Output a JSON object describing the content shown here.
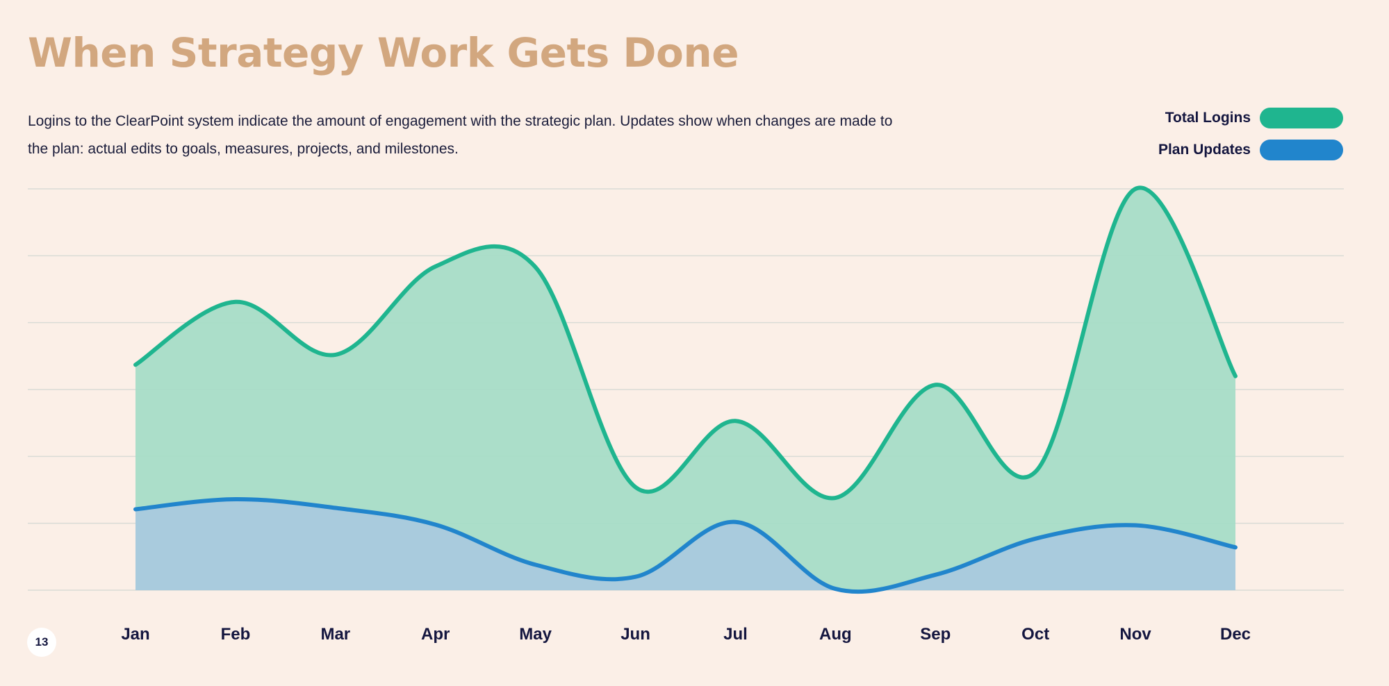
{
  "slide": {
    "title": "When Strategy Work Gets Done",
    "description": "Logins to the ClearPoint system indicate the amount of engagement with the strategic plan. Updates show when changes are made to the plan: actual edits to goals, measures, projects, and milestones.",
    "page_number": "13"
  },
  "legend": [
    {
      "label": "Total Logins",
      "color": "#1fb58f"
    },
    {
      "label": "Plan Updates",
      "color": "#2185cc"
    }
  ],
  "colors": {
    "background": "#fbefe7",
    "title": "#d2a77f",
    "gridline": "#d9dbd6",
    "logins_line": "#1fb58f",
    "logins_fill": "#a6dcc7",
    "updates_line": "#2185cc",
    "updates_fill": "#a9c9de"
  },
  "chart_data": {
    "type": "area",
    "categories": [
      "Jan",
      "Feb",
      "Mar",
      "Apr",
      "May",
      "Jun",
      "Jul",
      "Aug",
      "Sep",
      "Oct",
      "Nov",
      "Dec"
    ],
    "ylim": [
      0,
      6
    ],
    "grid": true,
    "y_tick_labels_shown": false,
    "legend_position": "top-right",
    "xlabel": "",
    "ylabel": "",
    "series": [
      {
        "name": "Total Logins",
        "values": [
          3.37,
          4.31,
          3.52,
          4.84,
          4.83,
          1.54,
          2.53,
          1.38,
          3.07,
          1.77,
          6.0,
          3.2
        ]
      },
      {
        "name": "Plan Updates",
        "values": [
          1.21,
          1.36,
          1.23,
          0.98,
          0.38,
          0.2,
          1.02,
          0.02,
          0.23,
          0.77,
          0.97,
          0.64
        ]
      }
    ]
  }
}
